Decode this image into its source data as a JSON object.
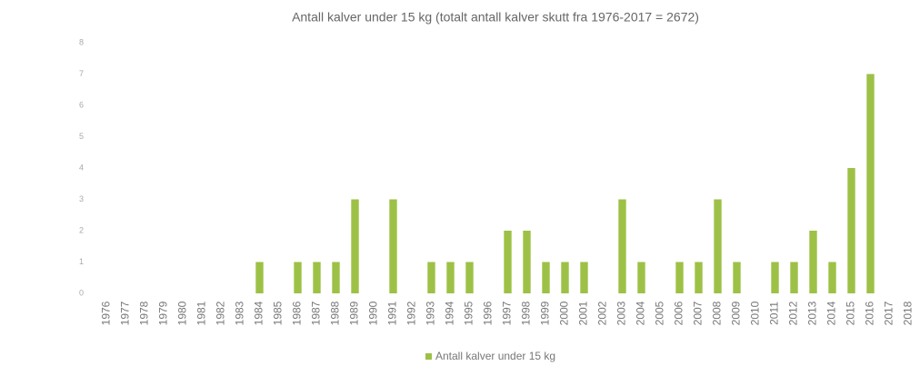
{
  "chart_data": {
    "type": "bar",
    "title": "Antall kalver under 15 kg (totalt antall kalver skutt fra 1976-2017 = 2672)",
    "categories": [
      "1976",
      "1977",
      "1978",
      "1979",
      "1980",
      "1981",
      "1982",
      "1983",
      "1984",
      "1985",
      "1986",
      "1987",
      "1988",
      "1989",
      "1990",
      "1991",
      "1992",
      "1993",
      "1994",
      "1995",
      "1996",
      "1997",
      "1998",
      "1999",
      "2000",
      "2001",
      "2002",
      "2003",
      "2004",
      "2005",
      "2006",
      "2007",
      "2008",
      "2009",
      "2010",
      "2011",
      "2012",
      "2013",
      "2014",
      "2015",
      "2016",
      "2017",
      "2018"
    ],
    "series": [
      {
        "name": "Antall kalver under 15 kg",
        "color": "#9dc146",
        "values": [
          0,
          0,
          0,
          0,
          0,
          0,
          0,
          0,
          1,
          0,
          1,
          1,
          1,
          3,
          0,
          3,
          0,
          1,
          1,
          1,
          0,
          2,
          2,
          1,
          1,
          1,
          0,
          3,
          1,
          0,
          1,
          1,
          3,
          1,
          0,
          1,
          1,
          2,
          1,
          4,
          7,
          0,
          0
        ]
      }
    ],
    "ylim": [
      0,
      8
    ],
    "yticks": [
      0,
      1,
      2,
      3,
      4,
      5,
      6,
      7,
      8
    ],
    "grid": false,
    "legend": "bottom"
  }
}
